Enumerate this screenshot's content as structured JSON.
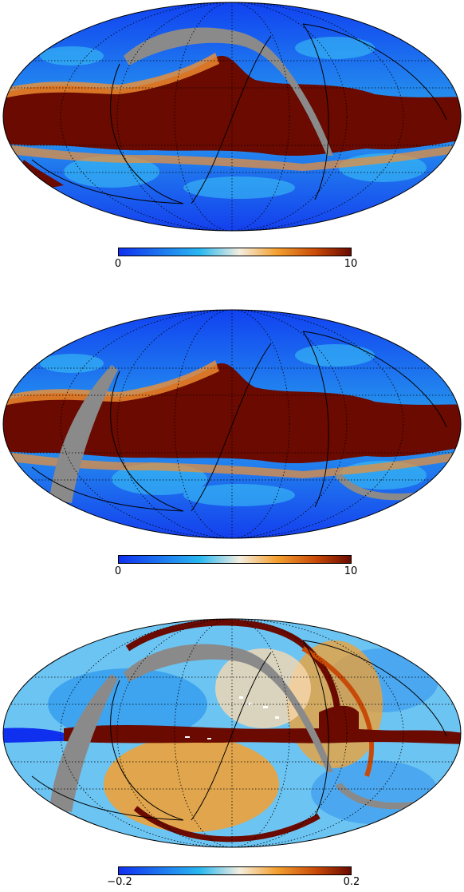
{
  "panels": [
    {
      "name": "map-1",
      "colorbar": {
        "min_label": "0",
        "max_label": "10",
        "min": 0,
        "max": 10
      },
      "mask_band": "north-arc"
    },
    {
      "name": "map-2",
      "colorbar": {
        "min_label": "0",
        "max_label": "10",
        "min": 0,
        "max": 10
      },
      "mask_band": "left-band"
    },
    {
      "name": "map-3",
      "colorbar": {
        "min_label": "−0.2",
        "max_label": "0.2",
        "min": -0.2,
        "max": 0.2
      },
      "mask_band": "north-arc-and-left-band"
    }
  ],
  "colors": {
    "cmap_low": "#1030f0",
    "cmap_mid_low": "#29b8f0",
    "cmap_mid": "#f4eee0",
    "cmap_mid_high": "#f4a030",
    "cmap_high": "#6a0a00",
    "mask": "#8a8a8a",
    "outline": "#000000"
  }
}
